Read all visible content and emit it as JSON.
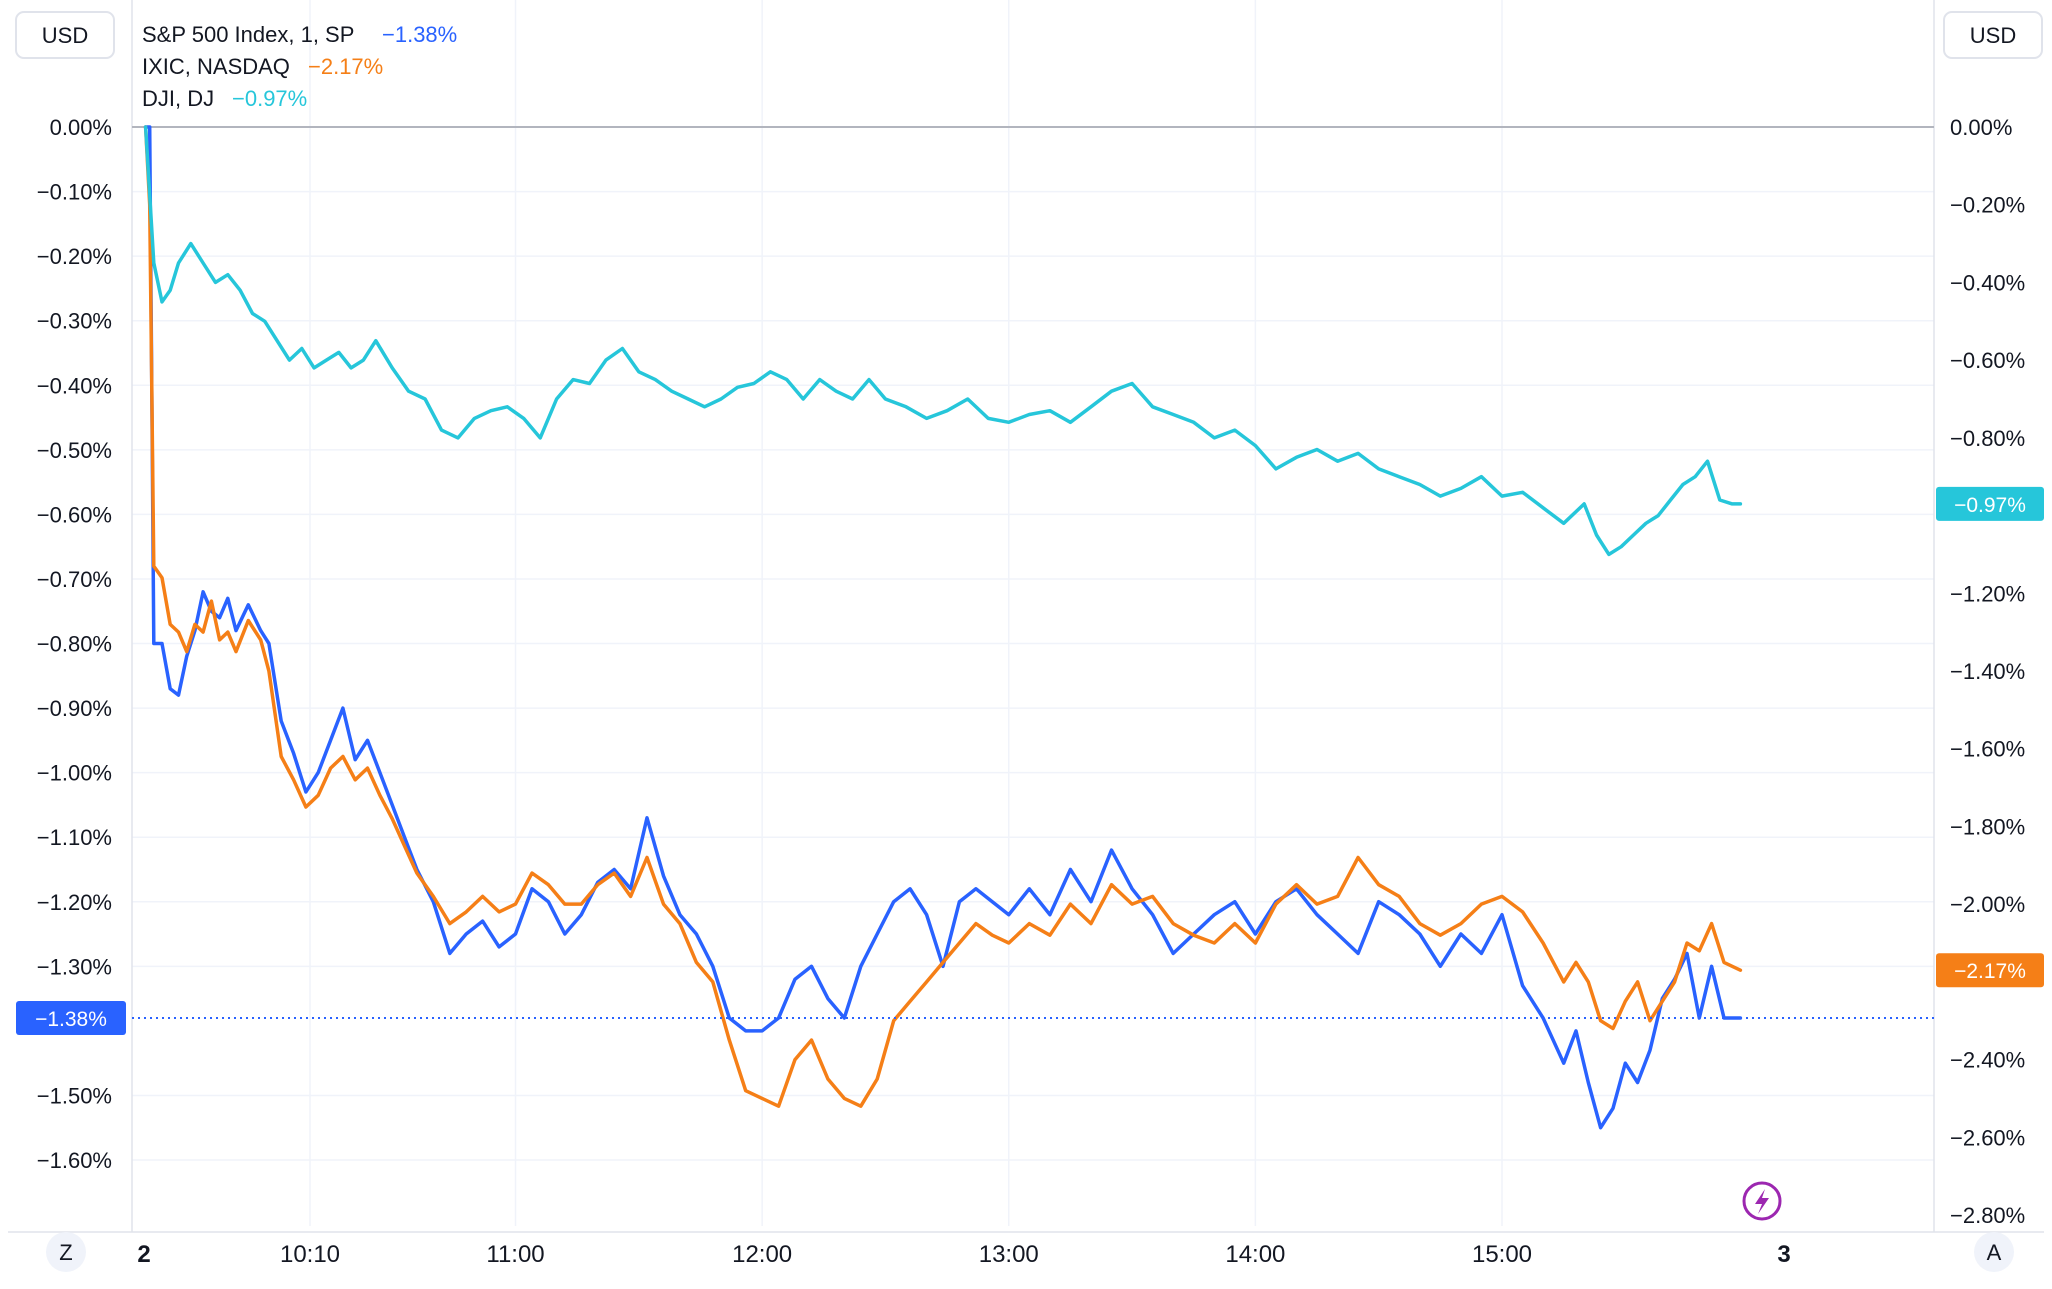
{
  "currency_left": "USD",
  "currency_right": "USD",
  "legend": [
    {
      "label": "S&P 500 Index, 1, SP",
      "value": "−1.38%",
      "color": "#2962ff"
    },
    {
      "label": "IXIC, NASDAQ",
      "value": "−2.17%",
      "color": "#f57f17"
    },
    {
      "label": "DJI, DJ",
      "value": "−0.97%",
      "color": "#26c6da"
    }
  ],
  "left_axis_labels": [
    "0.00%",
    "−0.10%",
    "−0.20%",
    "−0.30%",
    "−0.40%",
    "−0.50%",
    "−0.60%",
    "−0.70%",
    "−0.80%",
    "−0.90%",
    "−1.00%",
    "−1.10%",
    "−1.20%",
    "−1.30%",
    "−1.50%",
    "−1.60%"
  ],
  "right_axis_labels": [
    "0.00%",
    "−0.20%",
    "−0.40%",
    "−0.60%",
    "−0.80%",
    "−1.20%",
    "−1.40%",
    "−1.60%",
    "−1.80%",
    "−2.00%",
    "−2.40%",
    "−2.60%",
    "−2.80%"
  ],
  "time_labels": [
    "2",
    "10:10",
    "11:00",
    "12:00",
    "13:00",
    "14:00",
    "15:00",
    "3"
  ],
  "scale_buttons": {
    "left": "Z",
    "right": "A"
  },
  "badges": {
    "left": "−1.38%",
    "right_top": "−0.97%",
    "right_bottom": "−2.17%"
  },
  "colors": {
    "spx": "#2962ff",
    "ixic": "#f57f17",
    "dji": "#26c6da",
    "lightning": "#9c27b0",
    "grid": "#f0f3fa",
    "zero_line": "#b2b5be"
  },
  "chart_data": {
    "type": "line",
    "title": "",
    "xlabel": "",
    "ylabel": "",
    "x_range": [
      "09:30",
      "15:58"
    ],
    "ylim_left": [
      -1.66,
      0.06
    ],
    "ylim_right": [
      -2.85,
      0.05
    ],
    "grid": true,
    "legend_position": "top-left",
    "series": [
      {
        "name": "S&P 500 Index, 1, SP",
        "axis": "left",
        "color": "#2962ff",
        "x": [
          "09:30",
          "09:31",
          "09:32",
          "09:34",
          "09:36",
          "09:38",
          "09:40",
          "09:42",
          "09:44",
          "09:46",
          "09:48",
          "09:50",
          "09:52",
          "09:55",
          "09:58",
          "10:00",
          "10:03",
          "10:06",
          "10:09",
          "10:12",
          "10:15",
          "10:18",
          "10:21",
          "10:24",
          "10:27",
          "10:30",
          "10:33",
          "10:36",
          "10:40",
          "10:44",
          "10:48",
          "10:52",
          "10:56",
          "11:00",
          "11:04",
          "11:08",
          "11:12",
          "11:16",
          "11:20",
          "11:24",
          "11:28",
          "11:32",
          "11:36",
          "11:40",
          "11:44",
          "11:48",
          "11:52",
          "11:56",
          "12:00",
          "12:04",
          "12:08",
          "12:12",
          "12:16",
          "12:20",
          "12:24",
          "12:28",
          "12:32",
          "12:36",
          "12:40",
          "12:44",
          "12:48",
          "12:52",
          "12:56",
          "13:00",
          "13:05",
          "13:10",
          "13:15",
          "13:20",
          "13:25",
          "13:30",
          "13:35",
          "13:40",
          "13:45",
          "13:50",
          "13:55",
          "14:00",
          "14:05",
          "14:10",
          "14:15",
          "14:20",
          "14:25",
          "14:30",
          "14:35",
          "14:40",
          "14:45",
          "14:50",
          "14:55",
          "15:00",
          "15:05",
          "15:10",
          "15:15",
          "15:18",
          "15:21",
          "15:24",
          "15:27",
          "15:30",
          "15:33",
          "15:36",
          "15:39",
          "15:42",
          "15:45",
          "15:48",
          "15:51",
          "15:54",
          "15:58"
        ],
        "y": [
          0.0,
          0.0,
          -0.8,
          -0.8,
          -0.87,
          -0.88,
          -0.82,
          -0.78,
          -0.72,
          -0.75,
          -0.76,
          -0.73,
          -0.78,
          -0.74,
          -0.78,
          -0.8,
          -0.92,
          -0.97,
          -1.03,
          -1.0,
          -0.95,
          -0.9,
          -0.98,
          -0.95,
          -1.0,
          -1.05,
          -1.1,
          -1.15,
          -1.2,
          -1.28,
          -1.25,
          -1.23,
          -1.27,
          -1.25,
          -1.18,
          -1.2,
          -1.25,
          -1.22,
          -1.17,
          -1.15,
          -1.18,
          -1.07,
          -1.16,
          -1.22,
          -1.25,
          -1.3,
          -1.38,
          -1.4,
          -1.4,
          -1.38,
          -1.32,
          -1.3,
          -1.35,
          -1.38,
          -1.3,
          -1.25,
          -1.2,
          -1.18,
          -1.22,
          -1.3,
          -1.2,
          -1.18,
          -1.2,
          -1.22,
          -1.18,
          -1.22,
          -1.15,
          -1.2,
          -1.12,
          -1.18,
          -1.22,
          -1.28,
          -1.25,
          -1.22,
          -1.2,
          -1.25,
          -1.2,
          -1.18,
          -1.22,
          -1.25,
          -1.28,
          -1.2,
          -1.22,
          -1.25,
          -1.3,
          -1.25,
          -1.28,
          -1.22,
          -1.33,
          -1.38,
          -1.45,
          -1.4,
          -1.48,
          -1.55,
          -1.52,
          -1.45,
          -1.48,
          -1.43,
          -1.35,
          -1.32,
          -1.28,
          -1.38,
          -1.3,
          -1.38,
          -1.38
        ]
      },
      {
        "name": "IXIC, NASDAQ",
        "axis": "right",
        "color": "#f57f17",
        "x": [
          "09:30",
          "09:31",
          "09:32",
          "09:34",
          "09:36",
          "09:38",
          "09:40",
          "09:42",
          "09:44",
          "09:46",
          "09:48",
          "09:50",
          "09:52",
          "09:55",
          "09:58",
          "10:00",
          "10:03",
          "10:06",
          "10:09",
          "10:12",
          "10:15",
          "10:18",
          "10:21",
          "10:24",
          "10:27",
          "10:30",
          "10:33",
          "10:36",
          "10:40",
          "10:44",
          "10:48",
          "10:52",
          "10:56",
          "11:00",
          "11:04",
          "11:08",
          "11:12",
          "11:16",
          "11:20",
          "11:24",
          "11:28",
          "11:32",
          "11:36",
          "11:40",
          "11:44",
          "11:48",
          "11:52",
          "11:56",
          "12:00",
          "12:04",
          "12:08",
          "12:12",
          "12:16",
          "12:20",
          "12:24",
          "12:28",
          "12:32",
          "12:36",
          "12:40",
          "12:44",
          "12:48",
          "12:52",
          "12:56",
          "13:00",
          "13:05",
          "13:10",
          "13:15",
          "13:20",
          "13:25",
          "13:30",
          "13:35",
          "13:40",
          "13:45",
          "13:50",
          "13:55",
          "14:00",
          "14:05",
          "14:10",
          "14:15",
          "14:20",
          "14:25",
          "14:30",
          "14:35",
          "14:40",
          "14:45",
          "14:50",
          "14:55",
          "15:00",
          "15:05",
          "15:10",
          "15:15",
          "15:18",
          "15:21",
          "15:24",
          "15:27",
          "15:30",
          "15:33",
          "15:36",
          "15:39",
          "15:42",
          "15:45",
          "15:48",
          "15:51",
          "15:54",
          "15:58"
        ],
        "y": [
          0.0,
          -0.2,
          -1.13,
          -1.16,
          -1.28,
          -1.3,
          -1.35,
          -1.28,
          -1.3,
          -1.22,
          -1.32,
          -1.3,
          -1.35,
          -1.27,
          -1.32,
          -1.4,
          -1.62,
          -1.68,
          -1.75,
          -1.72,
          -1.65,
          -1.62,
          -1.68,
          -1.65,
          -1.72,
          -1.78,
          -1.85,
          -1.92,
          -1.98,
          -2.05,
          -2.02,
          -1.98,
          -2.02,
          -2.0,
          -1.92,
          -1.95,
          -2.0,
          -2.0,
          -1.95,
          -1.92,
          -1.98,
          -1.88,
          -2.0,
          -2.05,
          -2.15,
          -2.2,
          -2.35,
          -2.48,
          -2.5,
          -2.52,
          -2.4,
          -2.35,
          -2.45,
          -2.5,
          -2.52,
          -2.45,
          -2.3,
          -2.25,
          -2.2,
          -2.15,
          -2.1,
          -2.05,
          -2.08,
          -2.1,
          -2.05,
          -2.08,
          -2.0,
          -2.05,
          -1.95,
          -2.0,
          -1.98,
          -2.05,
          -2.08,
          -2.1,
          -2.05,
          -2.1,
          -2.0,
          -1.95,
          -2.0,
          -1.98,
          -1.88,
          -1.95,
          -1.98,
          -2.05,
          -2.08,
          -2.05,
          -2.0,
          -1.98,
          -2.02,
          -2.1,
          -2.2,
          -2.15,
          -2.2,
          -2.3,
          -2.32,
          -2.25,
          -2.2,
          -2.3,
          -2.25,
          -2.2,
          -2.1,
          -2.12,
          -2.05,
          -2.15,
          -2.17
        ]
      },
      {
        "name": "DJI, DJ",
        "axis": "right",
        "color": "#26c6da",
        "x": [
          "09:30",
          "09:32",
          "09:34",
          "09:36",
          "09:38",
          "09:41",
          "09:44",
          "09:47",
          "09:50",
          "09:53",
          "09:56",
          "09:59",
          "10:02",
          "10:05",
          "10:08",
          "10:11",
          "10:14",
          "10:17",
          "10:20",
          "10:23",
          "10:26",
          "10:30",
          "10:34",
          "10:38",
          "10:42",
          "10:46",
          "10:50",
          "10:54",
          "10:58",
          "11:02",
          "11:06",
          "11:10",
          "11:14",
          "11:18",
          "11:22",
          "11:26",
          "11:30",
          "11:34",
          "11:38",
          "11:42",
          "11:46",
          "11:50",
          "11:54",
          "11:58",
          "12:02",
          "12:06",
          "12:10",
          "12:14",
          "12:18",
          "12:22",
          "12:26",
          "12:30",
          "12:35",
          "12:40",
          "12:45",
          "12:50",
          "12:55",
          "13:00",
          "13:05",
          "13:10",
          "13:15",
          "13:20",
          "13:25",
          "13:30",
          "13:35",
          "13:40",
          "13:45",
          "13:50",
          "13:55",
          "14:00",
          "14:05",
          "14:10",
          "14:15",
          "14:20",
          "14:25",
          "14:30",
          "14:35",
          "14:40",
          "14:45",
          "14:50",
          "14:55",
          "15:00",
          "15:05",
          "15:10",
          "15:15",
          "15:20",
          "15:23",
          "15:26",
          "15:29",
          "15:32",
          "15:35",
          "15:38",
          "15:41",
          "15:44",
          "15:47",
          "15:50",
          "15:53",
          "15:56",
          "15:58"
        ],
        "y": [
          0.0,
          -0.35,
          -0.45,
          -0.42,
          -0.35,
          -0.3,
          -0.35,
          -0.4,
          -0.38,
          -0.42,
          -0.48,
          -0.5,
          -0.55,
          -0.6,
          -0.57,
          -0.62,
          -0.6,
          -0.58,
          -0.62,
          -0.6,
          -0.55,
          -0.62,
          -0.68,
          -0.7,
          -0.78,
          -0.8,
          -0.75,
          -0.73,
          -0.72,
          -0.75,
          -0.8,
          -0.7,
          -0.65,
          -0.66,
          -0.6,
          -0.57,
          -0.63,
          -0.65,
          -0.68,
          -0.7,
          -0.72,
          -0.7,
          -0.67,
          -0.66,
          -0.63,
          -0.65,
          -0.7,
          -0.65,
          -0.68,
          -0.7,
          -0.65,
          -0.7,
          -0.72,
          -0.75,
          -0.73,
          -0.7,
          -0.75,
          -0.76,
          -0.74,
          -0.73,
          -0.76,
          -0.72,
          -0.68,
          -0.66,
          -0.72,
          -0.74,
          -0.76,
          -0.8,
          -0.78,
          -0.82,
          -0.88,
          -0.85,
          -0.83,
          -0.86,
          -0.84,
          -0.88,
          -0.9,
          -0.92,
          -0.95,
          -0.93,
          -0.9,
          -0.95,
          -0.94,
          -0.98,
          -1.02,
          -0.97,
          -1.05,
          -1.1,
          -1.08,
          -1.05,
          -1.02,
          -1.0,
          -0.96,
          -0.92,
          -0.9,
          -0.86,
          -0.96,
          -0.97,
          -0.97
        ]
      }
    ]
  }
}
